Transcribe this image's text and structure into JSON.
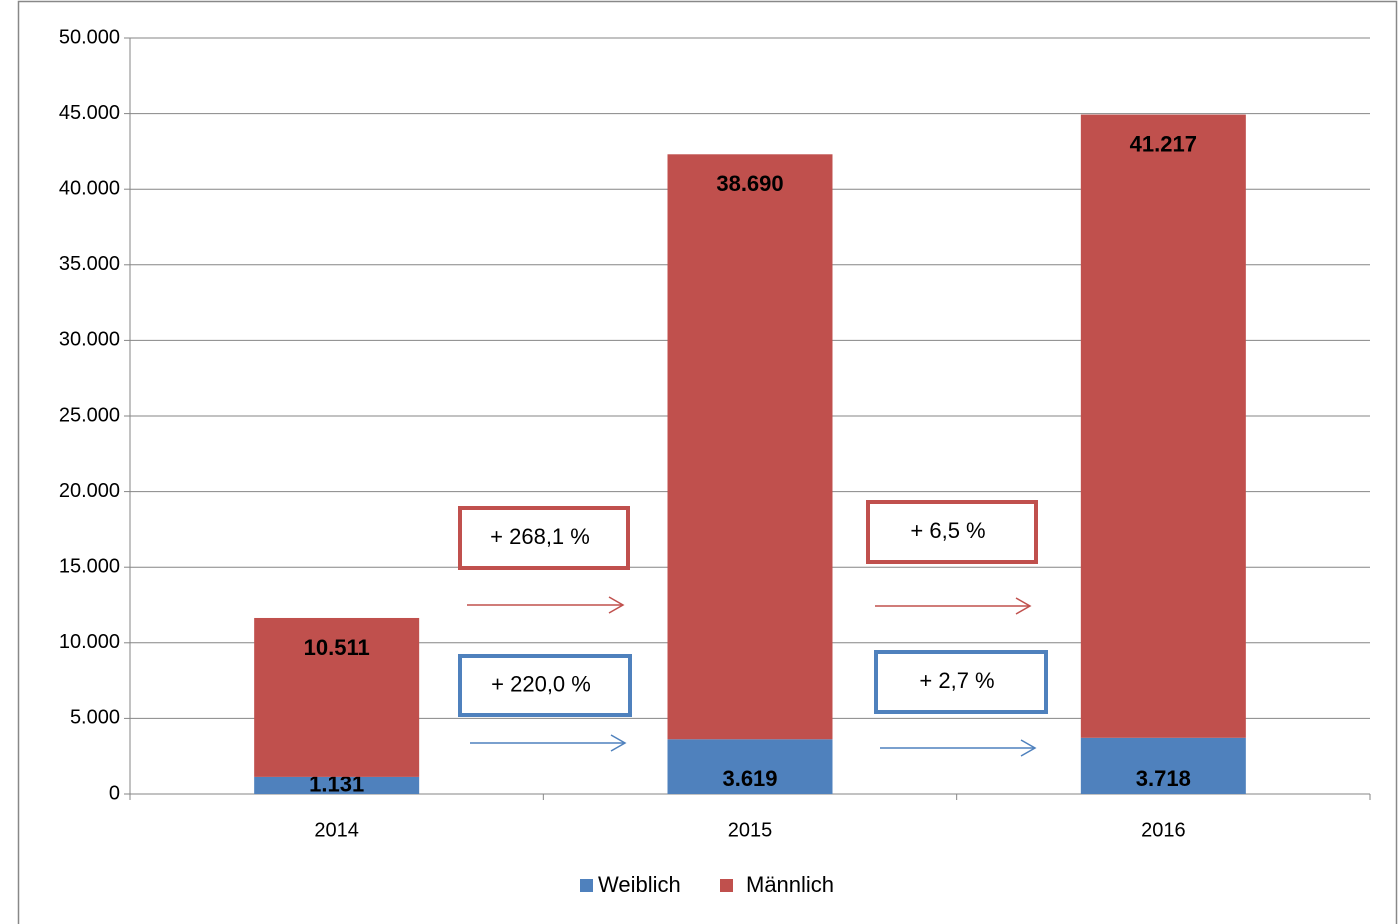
{
  "chart_data": {
    "type": "stacked_bar",
    "categories": [
      "2014",
      "2015",
      "2016"
    ],
    "series": [
      {
        "name": "Weiblich",
        "color": "#4f81bd",
        "values": [
          1131,
          3619,
          3718
        ],
        "value_labels": [
          "1.131",
          "3.619",
          "3.718"
        ]
      },
      {
        "name": "Männlich",
        "color": "#c0504d",
        "values": [
          10511,
          38690,
          41217
        ],
        "value_labels": [
          "10.511",
          "38.690",
          "41.217"
        ]
      }
    ],
    "ylim": [
      0,
      50000
    ],
    "yticks": [
      0,
      {
        "value": 5000,
        "label": "5.000"
      },
      {
        "value": 10000,
        "label": "10.000"
      },
      {
        "value": 15000,
        "label": "15.000"
      },
      {
        "value": 20000,
        "label": "20.000"
      },
      {
        "value": 25000,
        "label": "25.000"
      },
      {
        "value": 30000,
        "label": "30.000"
      },
      {
        "value": 35000,
        "label": "35.000"
      },
      {
        "value": 40000,
        "label": "40.000"
      },
      {
        "value": 45000,
        "label": "45.000"
      },
      {
        "value": 50000,
        "label": "50.000"
      }
    ],
    "grid": true,
    "legend": "bottom",
    "annotations": [
      {
        "text": "+ 268,1 %",
        "color": "#c0504d"
      },
      {
        "text": "+ 220,0 %",
        "color": "#4f81bd"
      },
      {
        "text": "+ 6,5 %",
        "color": "#c0504d"
      },
      {
        "text": "+ 2,7 %",
        "color": "#4f81bd"
      }
    ]
  }
}
